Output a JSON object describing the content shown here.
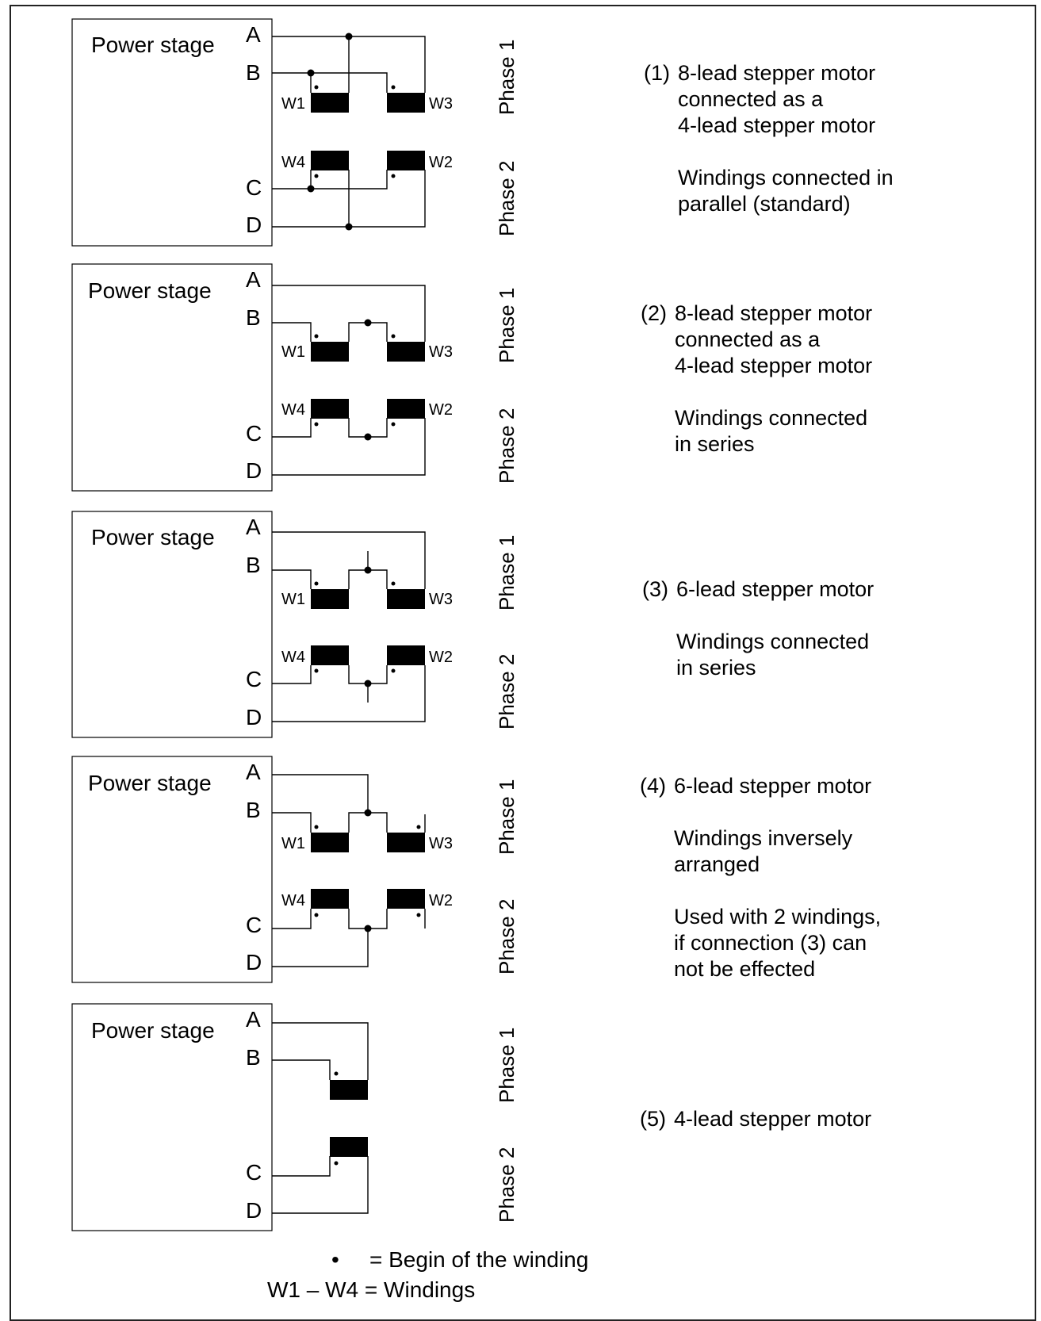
{
  "diagrams": [
    {
      "power_stage_label": "Power stage",
      "terminals": [
        "A",
        "B",
        "C",
        "D"
      ],
      "windings": [
        "W1",
        "W3",
        "W4",
        "W2"
      ],
      "phases": [
        "Phase 1",
        "Phase 2"
      ],
      "number": "(1)",
      "description": [
        "8-lead stepper motor",
        "connected as a",
        "4-lead stepper motor",
        "",
        "Windings connected in",
        "parallel (standard)"
      ]
    },
    {
      "power_stage_label": "Power stage",
      "terminals": [
        "A",
        "B",
        "C",
        "D"
      ],
      "windings": [
        "W1",
        "W3",
        "W4",
        "W2"
      ],
      "phases": [
        "Phase 1",
        "Phase 2"
      ],
      "number": "(2)",
      "description": [
        "8-lead stepper motor",
        "connected as a",
        "4-lead stepper motor",
        "",
        "Windings connected",
        "in series"
      ]
    },
    {
      "power_stage_label": "Power stage",
      "terminals": [
        "A",
        "B",
        "C",
        "D"
      ],
      "windings": [
        "W1",
        "W3",
        "W4",
        "W2"
      ],
      "phases": [
        "Phase 1",
        "Phase 2"
      ],
      "number": "(3)",
      "description": [
        "6-lead stepper motor",
        "",
        "Windings connected",
        "in series"
      ]
    },
    {
      "power_stage_label": "Power stage",
      "terminals": [
        "A",
        "B",
        "C",
        "D"
      ],
      "windings": [
        "W1",
        "W3",
        "W4",
        "W2"
      ],
      "phases": [
        "Phase 1",
        "Phase 2"
      ],
      "number": "(4)",
      "description": [
        "6-lead stepper motor",
        "",
        "Windings inversely",
        "arranged",
        "",
        "Used with 2 windings,",
        "if connection (3) can",
        "not be effected"
      ]
    },
    {
      "power_stage_label": "Power stage",
      "terminals": [
        "A",
        "B",
        "C",
        "D"
      ],
      "windings": [],
      "phases": [
        "Phase 1",
        "Phase 2"
      ],
      "number": "(5)",
      "description": [
        "4-lead stepper motor"
      ]
    }
  ],
  "legend": {
    "dot_symbol": "•",
    "dot_text": "= Begin of the winding",
    "windings_text": "W1 – W4 = Windings"
  }
}
